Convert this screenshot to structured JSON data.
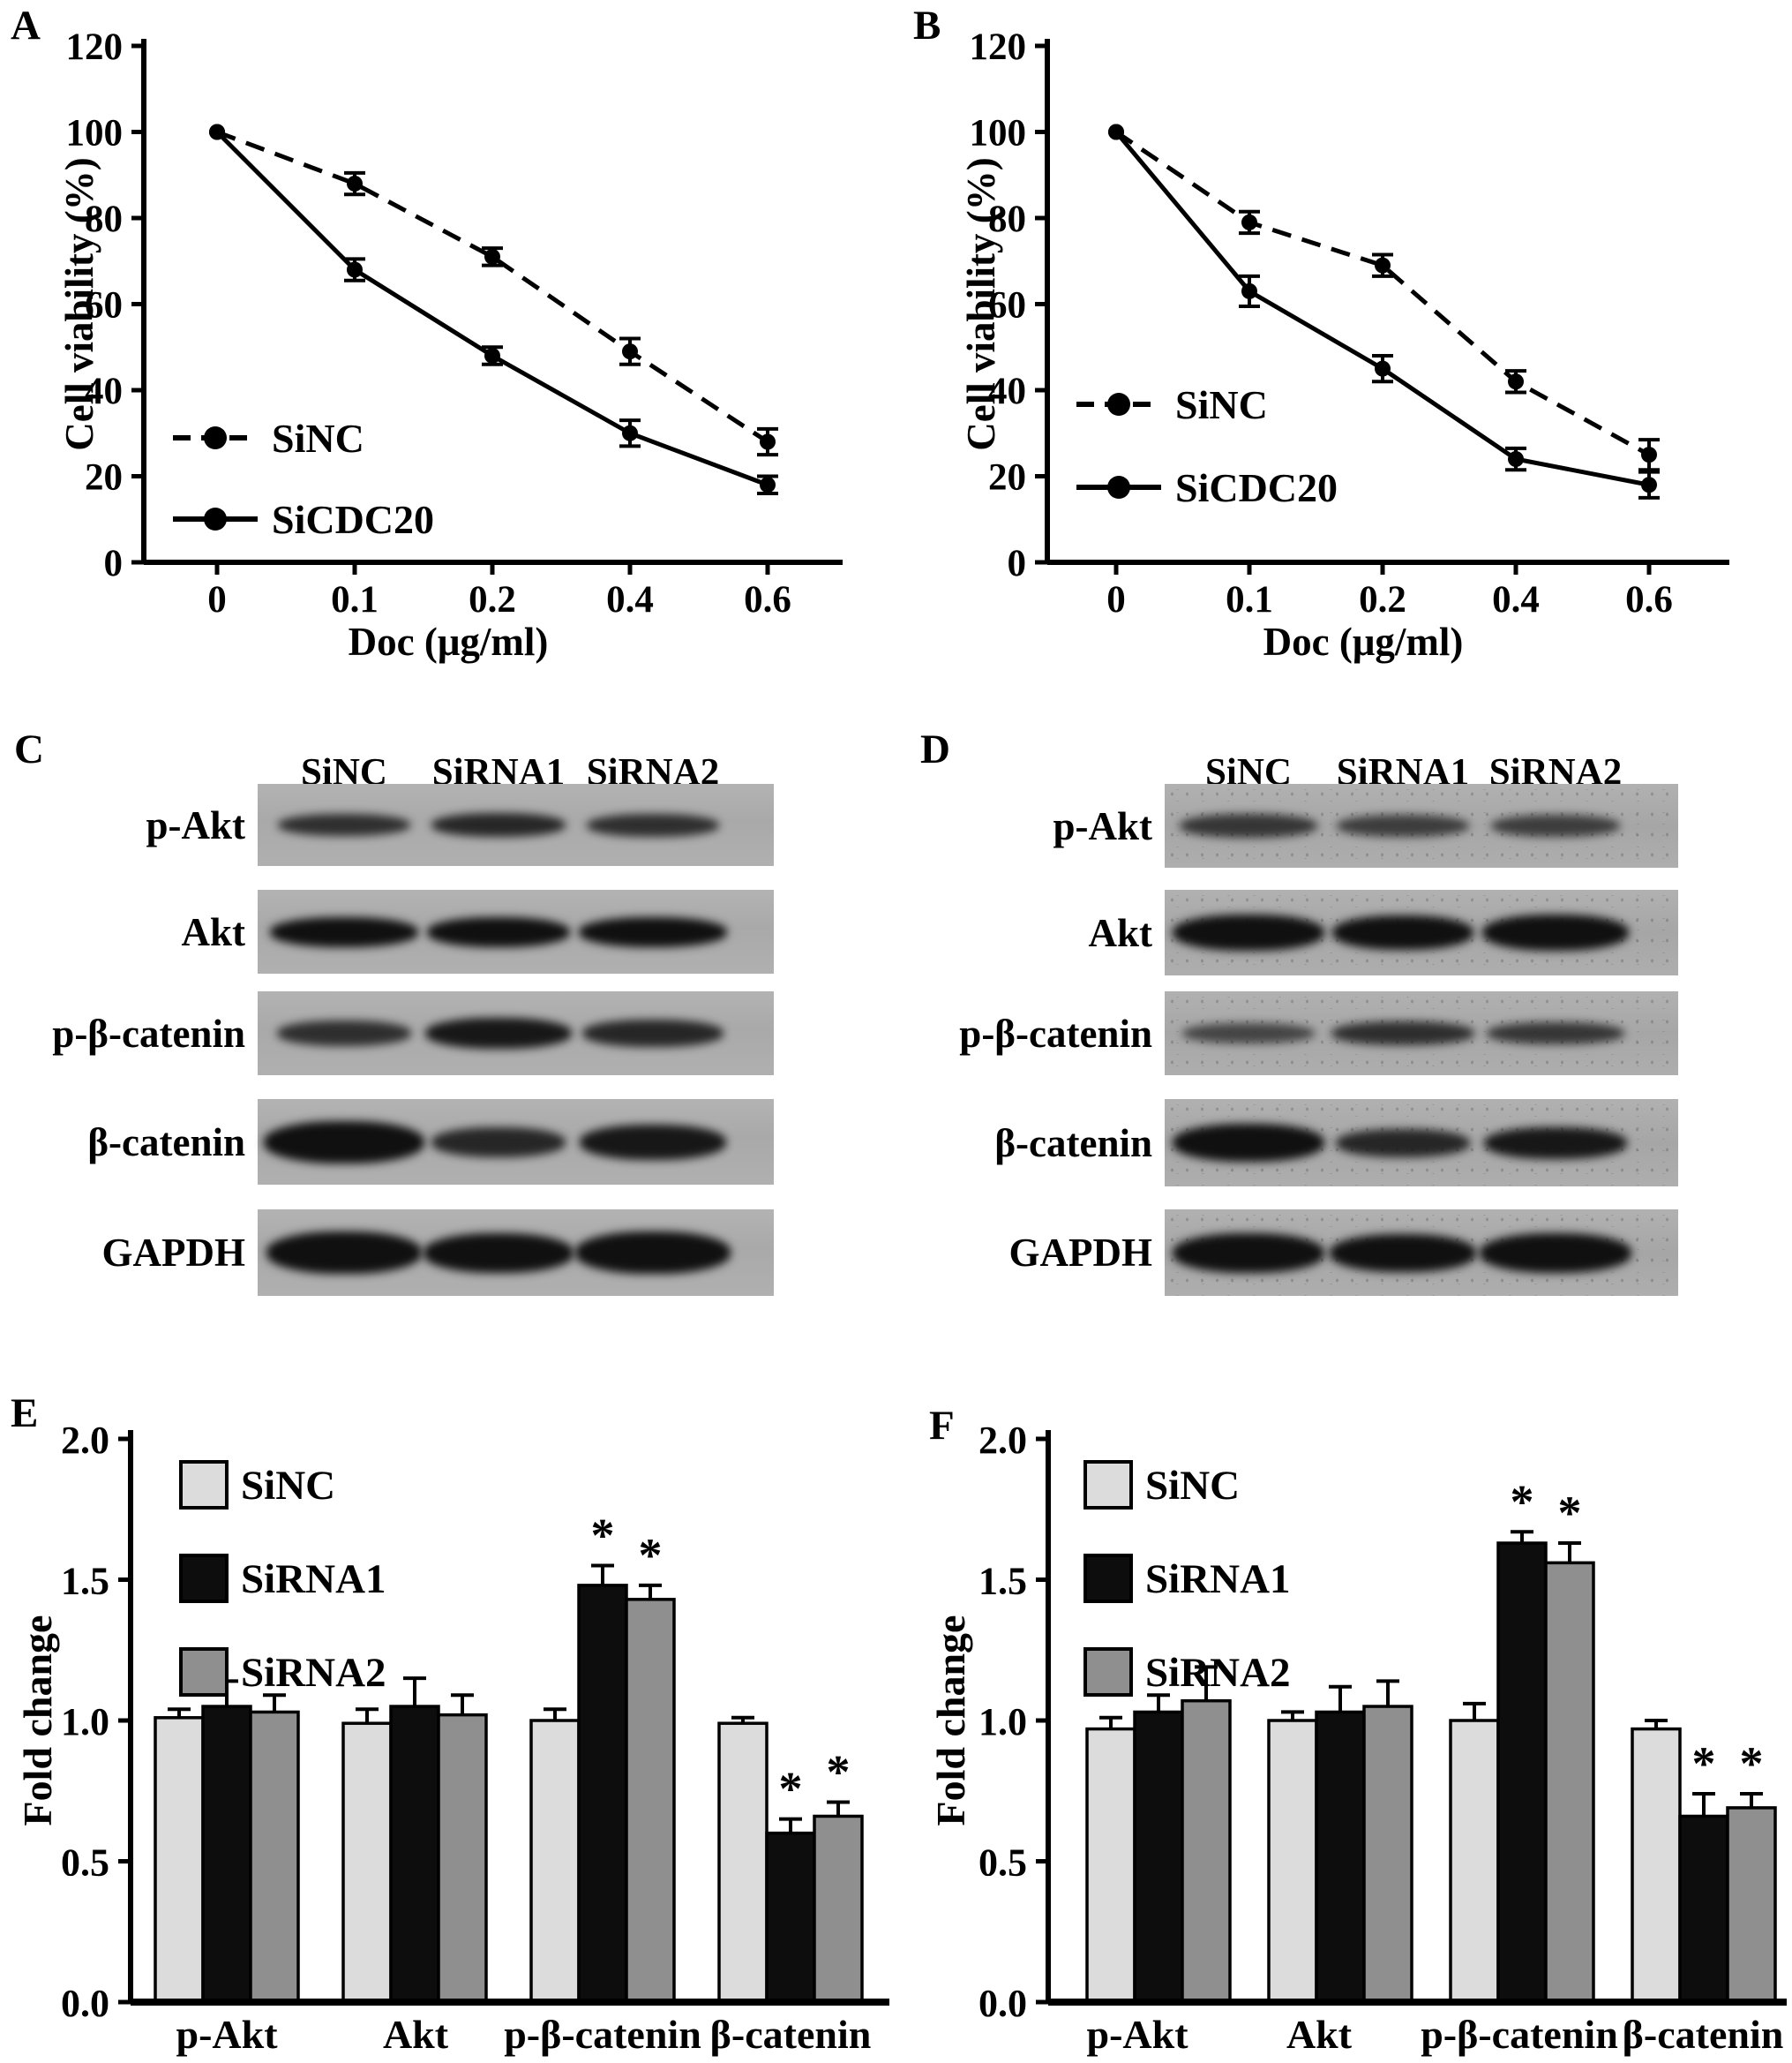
{
  "sig_marker": "*",
  "chart_data": [
    {
      "type": "line",
      "panel": "A",
      "xlabel": "Doc (μg/ml)",
      "ylabel": "Cell viability (%)",
      "x_categories": [
        "0",
        "0.1",
        "0.2",
        "0.4",
        "0.6"
      ],
      "ylim": [
        0,
        120
      ],
      "yticks": [
        0,
        20,
        40,
        60,
        80,
        100,
        120
      ],
      "grid": false,
      "legend_position": "lower-left",
      "series": [
        {
          "name": "SiNC",
          "style": "dashed",
          "marker": "circle",
          "values": [
            100,
            88,
            71,
            49,
            28
          ],
          "errors": [
            0,
            2.5,
            2,
            3,
            3
          ]
        },
        {
          "name": "SiCDC20",
          "style": "solid",
          "marker": "circle",
          "values": [
            100,
            68,
            48,
            30,
            18
          ],
          "errors": [
            0,
            2.5,
            2,
            3,
            2
          ]
        }
      ]
    },
    {
      "type": "line",
      "panel": "B",
      "xlabel": "Doc (μg/ml)",
      "ylabel": "Cell viability (%)",
      "x_categories": [
        "0",
        "0.1",
        "0.2",
        "0.4",
        "0.6"
      ],
      "ylim": [
        0,
        120
      ],
      "yticks": [
        0,
        20,
        40,
        60,
        80,
        100,
        120
      ],
      "grid": false,
      "legend_position": "lower-left",
      "series": [
        {
          "name": "SiNC",
          "style": "dashed",
          "marker": "circle",
          "values": [
            100,
            79,
            69,
            42,
            25
          ],
          "errors": [
            0,
            2.5,
            2.5,
            2.5,
            3.5
          ]
        },
        {
          "name": "SiCDC20",
          "style": "solid",
          "marker": "circle",
          "values": [
            100,
            63,
            45,
            24,
            18
          ],
          "errors": [
            0,
            3.5,
            3,
            2.5,
            3
          ]
        }
      ]
    },
    {
      "type": "bar",
      "panel": "E",
      "ylabel": "Fold change",
      "ylim": [
        0,
        2.0
      ],
      "yticks": [
        "0.0",
        "0.5",
        "1.0",
        "1.5",
        "2.0"
      ],
      "grid": false,
      "legend_position": "upper-left",
      "categories": [
        "p-Akt",
        "Akt",
        "p-β-catenin",
        "β-catenin"
      ],
      "series": [
        {
          "name": "SiNC",
          "color": "#dcdcdc",
          "values": [
            1.01,
            0.99,
            1.0,
            0.99
          ],
          "errors": [
            0.03,
            0.05,
            0.04,
            0.02
          ],
          "sig": [
            false,
            false,
            false,
            false
          ]
        },
        {
          "name": "SiRNA1",
          "color": "#0d0d0d",
          "values": [
            1.05,
            1.05,
            1.48,
            0.6
          ],
          "errors": [
            0.09,
            0.1,
            0.07,
            0.05
          ],
          "sig": [
            false,
            false,
            true,
            true
          ]
        },
        {
          "name": "SiRNA2",
          "color": "#8f8f8f",
          "values": [
            1.03,
            1.02,
            1.43,
            0.66
          ],
          "errors": [
            0.06,
            0.07,
            0.05,
            0.05
          ],
          "sig": [
            false,
            false,
            true,
            true
          ]
        }
      ]
    },
    {
      "type": "bar",
      "panel": "F",
      "ylabel": "Fold change",
      "ylim": [
        0,
        2.0
      ],
      "yticks": [
        "0.0",
        "0.5",
        "1.0",
        "1.5",
        "2.0"
      ],
      "grid": false,
      "legend_position": "upper-left",
      "categories": [
        "p-Akt",
        "Akt",
        "p-β-catenin",
        "β-catenin"
      ],
      "series": [
        {
          "name": "SiNC",
          "color": "#dcdcdc",
          "values": [
            0.97,
            1.0,
            1.0,
            0.97
          ],
          "errors": [
            0.04,
            0.03,
            0.06,
            0.03
          ],
          "sig": [
            false,
            false,
            false,
            false
          ]
        },
        {
          "name": "SiRNA1",
          "color": "#0d0d0d",
          "values": [
            1.03,
            1.03,
            1.63,
            0.66
          ],
          "errors": [
            0.06,
            0.09,
            0.04,
            0.08
          ],
          "sig": [
            false,
            false,
            true,
            true
          ]
        },
        {
          "name": "SiRNA2",
          "color": "#8f8f8f",
          "values": [
            1.07,
            1.05,
            1.56,
            0.69
          ],
          "errors": [
            0.12,
            0.09,
            0.07,
            0.05
          ],
          "sig": [
            false,
            false,
            true,
            true
          ]
        }
      ]
    }
  ],
  "blots": [
    {
      "panel": "C",
      "lanes": [
        "SiNC",
        "SiRNA1",
        "SiRNA2"
      ],
      "rows": [
        {
          "name": "p-Akt",
          "bands": [
            {
              "w": 150,
              "h": 25,
              "o": 0.8
            },
            {
              "w": 152,
              "h": 27,
              "o": 0.85
            },
            {
              "w": 150,
              "h": 26,
              "o": 0.8
            }
          ]
        },
        {
          "name": "Akt",
          "bands": [
            {
              "w": 168,
              "h": 34,
              "o": 1
            },
            {
              "w": 162,
              "h": 34,
              "o": 1
            },
            {
              "w": 168,
              "h": 34,
              "o": 1
            }
          ]
        },
        {
          "name": "p-β-catenin",
          "bands": [
            {
              "w": 152,
              "h": 29,
              "o": 0.8
            },
            {
              "w": 166,
              "h": 35,
              "o": 0.95
            },
            {
              "w": 160,
              "h": 31,
              "o": 0.85
            }
          ]
        },
        {
          "name": "β-catenin",
          "bands": [
            {
              "w": 182,
              "h": 48,
              "o": 1
            },
            {
              "w": 152,
              "h": 34,
              "o": 0.85
            },
            {
              "w": 166,
              "h": 40,
              "o": 0.95
            }
          ]
        },
        {
          "name": "GAPDH",
          "bands": [
            {
              "w": 176,
              "h": 48,
              "o": 1
            },
            {
              "w": 170,
              "h": 45,
              "o": 1
            },
            {
              "w": 176,
              "h": 48,
              "o": 1
            }
          ]
        }
      ]
    },
    {
      "panel": "D",
      "lanes": [
        "SiNC",
        "SiRNA1",
        "SiRNA2"
      ],
      "rows": [
        {
          "name": "p-Akt",
          "bands": [
            {
              "w": 156,
              "h": 27,
              "o": 0.75
            },
            {
              "w": 150,
              "h": 25,
              "o": 0.7
            },
            {
              "w": 146,
              "h": 25,
              "o": 0.7
            }
          ]
        },
        {
          "name": "Akt",
          "bands": [
            {
              "w": 172,
              "h": 41,
              "o": 1
            },
            {
              "w": 160,
              "h": 39,
              "o": 1
            },
            {
              "w": 166,
              "h": 41,
              "o": 1
            }
          ]
        },
        {
          "name": "p-β-catenin",
          "bands": [
            {
              "w": 150,
              "h": 23,
              "o": 0.65
            },
            {
              "w": 162,
              "h": 27,
              "o": 0.8
            },
            {
              "w": 156,
              "h": 25,
              "o": 0.75
            }
          ]
        },
        {
          "name": "β-catenin",
          "bands": [
            {
              "w": 172,
              "h": 43,
              "o": 1
            },
            {
              "w": 152,
              "h": 32,
              "o": 0.85
            },
            {
              "w": 162,
              "h": 36,
              "o": 0.95
            }
          ]
        },
        {
          "name": "GAPDH",
          "bands": [
            {
              "w": 172,
              "h": 45,
              "o": 1
            },
            {
              "w": 166,
              "h": 43,
              "o": 1
            },
            {
              "w": 172,
              "h": 45,
              "o": 1
            }
          ]
        }
      ]
    }
  ]
}
